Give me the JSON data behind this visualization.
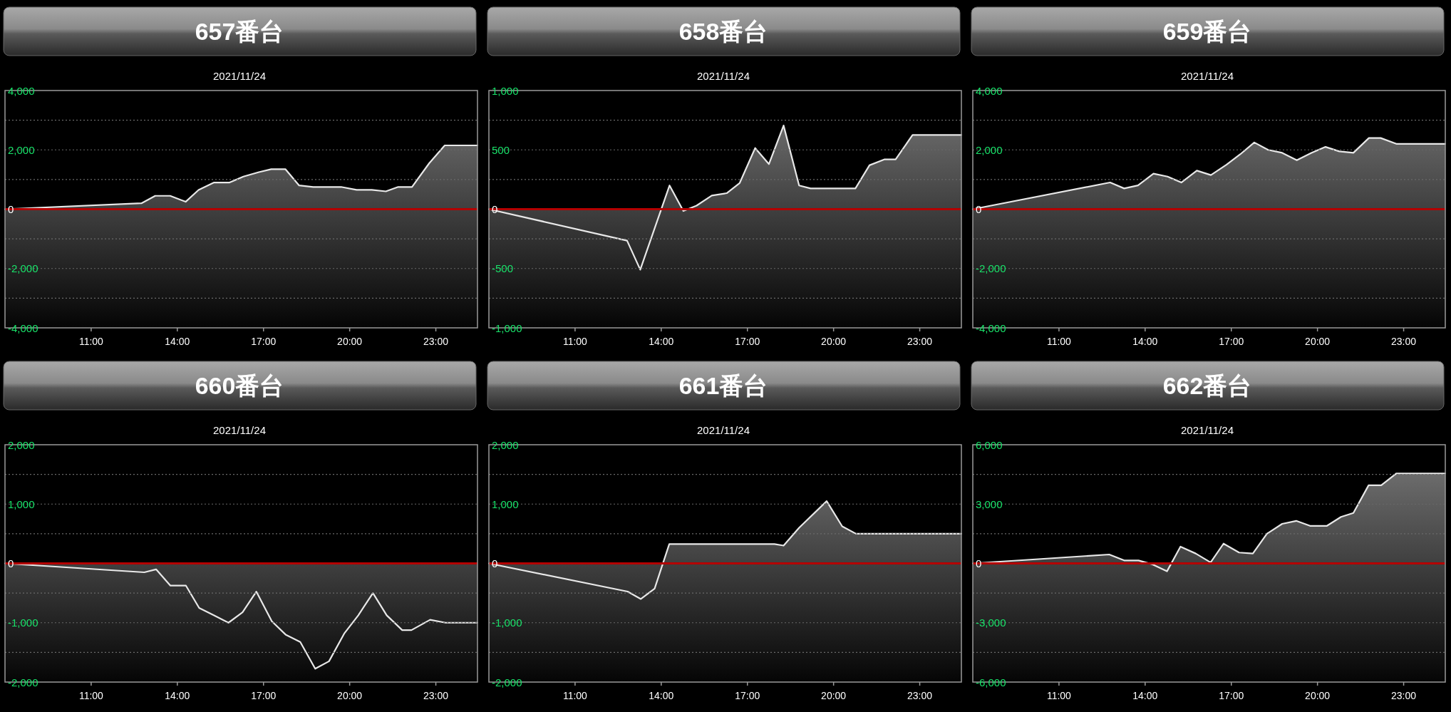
{
  "chart_data": [
    {
      "type": "area",
      "title": "657番台",
      "subtitle": "2021/11/24",
      "color": "#e8e8e8",
      "grid": "y",
      "x": [
        8.0,
        12.75,
        13.23,
        13.75,
        14.29,
        14.74,
        15.28,
        15.82,
        16.3,
        16.84,
        17.27,
        17.76,
        18.24,
        18.73,
        19.7,
        20.24,
        20.77,
        21.26,
        21.69,
        22.17,
        22.77,
        23.31,
        24.45
      ],
      "values": [
        0,
        200,
        450,
        450,
        250,
        650,
        900,
        900,
        1100,
        1250,
        1350,
        1350,
        800,
        750,
        750,
        650,
        650,
        600,
        750,
        750,
        1550,
        2150,
        2150
      ],
      "xlim": [
        8,
        24.45
      ],
      "ylim": [
        -4000,
        4000
      ],
      "xticks": [
        {
          "value": 11,
          "label": "11:00"
        },
        {
          "value": 14,
          "label": "14:00"
        },
        {
          "value": 17,
          "label": "17:00"
        },
        {
          "value": 20,
          "label": "20:00"
        },
        {
          "value": 23,
          "label": "23:00"
        }
      ],
      "yticks": [
        {
          "value": -4000,
          "label": "-4,000"
        },
        {
          "value": -3000,
          "label": null
        },
        {
          "value": -2000,
          "label": "-2,000"
        },
        {
          "value": -1000,
          "label": null
        },
        0,
        {
          "value": 1000,
          "label": null
        },
        {
          "value": 2000,
          "label": "2,000"
        },
        {
          "value": 3000,
          "label": null
        },
        {
          "value": 4000,
          "label": "4,000"
        }
      ],
      "ref_lines": [
        {
          "axis": "y",
          "value": 0,
          "color": "#b40000"
        }
      ]
    },
    {
      "type": "area",
      "title": "658番台",
      "subtitle": "2021/11/24",
      "color": "#e8e8e8",
      "grid": "y",
      "x": [
        8.0,
        12.81,
        13.27,
        14.29,
        14.77,
        15.23,
        15.76,
        16.28,
        16.73,
        17.27,
        17.75,
        18.26,
        18.8,
        19.2,
        20.76,
        21.25,
        21.78,
        22.16,
        22.75,
        24.45
      ],
      "values": [
        0,
        -265,
        -510,
        200,
        -15,
        30,
        115,
        135,
        220,
        515,
        380,
        705,
        200,
        175,
        175,
        370,
        420,
        420,
        625,
        625
      ],
      "xlim": [
        8,
        24.45
      ],
      "ylim": [
        -1000,
        1000
      ],
      "xticks": [
        {
          "value": 11,
          "label": "11:00"
        },
        {
          "value": 14,
          "label": "14:00"
        },
        {
          "value": 17,
          "label": "17:00"
        },
        {
          "value": 20,
          "label": "20:00"
        },
        {
          "value": 23,
          "label": "23:00"
        }
      ],
      "yticks": [
        {
          "value": -1000,
          "label": "-1,000"
        },
        {
          "value": -750,
          "label": null
        },
        -500,
        {
          "value": -250,
          "label": null
        },
        0,
        {
          "value": 250,
          "label": null
        },
        500,
        {
          "value": 750,
          "label": null
        },
        {
          "value": 1000,
          "label": "1,000"
        }
      ],
      "ref_lines": [
        {
          "axis": "y",
          "value": 0,
          "color": "#b40000"
        }
      ]
    },
    {
      "type": "area",
      "title": "659番台",
      "subtitle": "2021/11/24",
      "color": "#e8e8e8",
      "grid": "y",
      "x": [
        8.0,
        12.78,
        13.27,
        13.75,
        14.29,
        14.78,
        15.26,
        15.8,
        16.29,
        16.83,
        17.31,
        17.8,
        18.28,
        18.77,
        19.28,
        19.79,
        20.28,
        20.76,
        21.25,
        21.79,
        22.2,
        22.76,
        24.45
      ],
      "values": [
        0,
        900,
        700,
        800,
        1200,
        1100,
        900,
        1300,
        1150,
        1500,
        1850,
        2250,
        2000,
        1900,
        1650,
        1900,
        2100,
        1950,
        1900,
        2400,
        2400,
        2200,
        2200
      ],
      "xlim": [
        8,
        24.45
      ],
      "ylim": [
        -4000,
        4000
      ],
      "xticks": [
        {
          "value": 11,
          "label": "11:00"
        },
        {
          "value": 14,
          "label": "14:00"
        },
        {
          "value": 17,
          "label": "17:00"
        },
        {
          "value": 20,
          "label": "20:00"
        },
        {
          "value": 23,
          "label": "23:00"
        }
      ],
      "yticks": [
        {
          "value": -4000,
          "label": "-4,000"
        },
        {
          "value": -3000,
          "label": null
        },
        {
          "value": -2000,
          "label": "-2,000"
        },
        {
          "value": -1000,
          "label": null
        },
        0,
        {
          "value": 1000,
          "label": null
        },
        {
          "value": 2000,
          "label": "2,000"
        },
        {
          "value": 3000,
          "label": null
        },
        {
          "value": 4000,
          "label": "4,000"
        }
      ],
      "ref_lines": [
        {
          "axis": "y",
          "value": 0,
          "color": "#b40000"
        }
      ]
    },
    {
      "type": "area",
      "title": "660番台",
      "subtitle": "2021/11/24",
      "color": "#e8e8e8",
      "grid": "y",
      "x": [
        8.0,
        12.85,
        13.26,
        13.76,
        14.3,
        14.76,
        15.27,
        15.78,
        16.27,
        16.75,
        17.29,
        17.77,
        18.28,
        18.8,
        19.28,
        19.82,
        20.3,
        20.81,
        21.29,
        21.83,
        22.15,
        22.8,
        23.34,
        24.45
      ],
      "values": [
        0,
        -150,
        -100,
        -375,
        -375,
        -750,
        -875,
        -1000,
        -825,
        -475,
        -975,
        -1200,
        -1325,
        -1775,
        -1650,
        -1175,
        -875,
        -500,
        -875,
        -1125,
        -1125,
        -950,
        -1000,
        -1000
      ],
      "xlim": [
        8,
        24.45
      ],
      "ylim": [
        -2000,
        2000
      ],
      "xticks": [
        {
          "value": 11,
          "label": "11:00"
        },
        {
          "value": 14,
          "label": "14:00"
        },
        {
          "value": 17,
          "label": "17:00"
        },
        {
          "value": 20,
          "label": "20:00"
        },
        {
          "value": 23,
          "label": "23:00"
        }
      ],
      "yticks": [
        {
          "value": -2000,
          "label": "-2,000"
        },
        {
          "value": -1500,
          "label": null
        },
        {
          "value": -1000,
          "label": "-1,000"
        },
        {
          "value": -500,
          "label": null
        },
        0,
        {
          "value": 500,
          "label": null
        },
        {
          "value": 1000,
          "label": "1,000"
        },
        {
          "value": 1500,
          "label": null
        },
        {
          "value": 2000,
          "label": "2,000"
        }
      ],
      "ref_lines": [
        {
          "axis": "y",
          "value": 0,
          "color": "#b40000"
        }
      ]
    },
    {
      "type": "area",
      "title": "661番台",
      "subtitle": "2021/11/24",
      "color": "#e8e8e8",
      "grid": "y",
      "x": [
        8.0,
        12.83,
        13.29,
        13.77,
        14.28,
        17.94,
        18.26,
        18.8,
        19.76,
        20.3,
        20.78,
        24.45
      ],
      "values": [
        0,
        -475,
        -600,
        -425,
        325,
        325,
        300,
        600,
        1050,
        625,
        500,
        500
      ],
      "xlim": [
        8,
        24.45
      ],
      "ylim": [
        -2000,
        2000
      ],
      "xticks": [
        {
          "value": 11,
          "label": "11:00"
        },
        {
          "value": 14,
          "label": "14:00"
        },
        {
          "value": 17,
          "label": "17:00"
        },
        {
          "value": 20,
          "label": "20:00"
        },
        {
          "value": 23,
          "label": "23:00"
        }
      ],
      "yticks": [
        {
          "value": -2000,
          "label": "-2,000"
        },
        {
          "value": -1500,
          "label": null
        },
        {
          "value": -1000,
          "label": "-1,000"
        },
        {
          "value": -500,
          "label": null
        },
        0,
        {
          "value": 500,
          "label": null
        },
        {
          "value": 1000,
          "label": "1,000"
        },
        {
          "value": 1500,
          "label": null
        },
        {
          "value": 2000,
          "label": "2,000"
        }
      ],
      "ref_lines": [
        {
          "axis": "y",
          "value": 0,
          "color": "#b40000"
        }
      ]
    },
    {
      "type": "area",
      "title": "662番台",
      "subtitle": "2021/11/24",
      "color": "#e8e8e8",
      "grid": "y",
      "x": [
        8.0,
        12.75,
        13.27,
        13.77,
        14.26,
        14.76,
        15.23,
        15.76,
        16.28,
        16.73,
        17.27,
        17.75,
        18.24,
        18.77,
        19.26,
        19.74,
        20.33,
        20.82,
        21.25,
        21.78,
        22.22,
        22.75,
        24.45
      ],
      "values": [
        0,
        450,
        150,
        150,
        -50,
        -400,
        850,
        500,
        50,
        1000,
        550,
        500,
        1500,
        2000,
        2150,
        1900,
        1900,
        2350,
        2550,
        3950,
        3950,
        4550,
        4550
      ],
      "xlim": [
        8,
        24.45
      ],
      "ylim": [
        -6000,
        6000
      ],
      "xticks": [
        {
          "value": 11,
          "label": "11:00"
        },
        {
          "value": 14,
          "label": "14:00"
        },
        {
          "value": 17,
          "label": "17:00"
        },
        {
          "value": 20,
          "label": "20:00"
        },
        {
          "value": 23,
          "label": "23:00"
        }
      ],
      "yticks": [
        {
          "value": -6000,
          "label": "-6,000"
        },
        {
          "value": -4500,
          "label": null
        },
        {
          "value": -3000,
          "label": "-3,000"
        },
        {
          "value": -1500,
          "label": null
        },
        0,
        {
          "value": 1500,
          "label": null
        },
        {
          "value": 3000,
          "label": "3,000"
        },
        {
          "value": 4500,
          "label": null
        },
        {
          "value": 6000,
          "label": "6,000"
        }
      ],
      "ref_lines": [
        {
          "axis": "y",
          "value": 0,
          "color": "#b40000"
        }
      ]
    }
  ]
}
